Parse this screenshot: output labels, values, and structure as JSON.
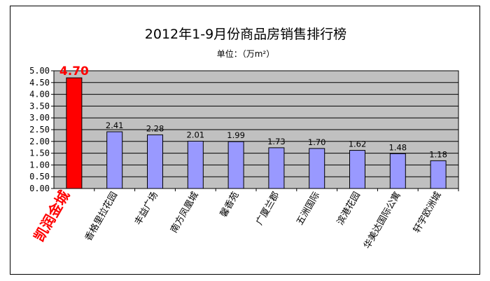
{
  "chart_data": {
    "type": "bar",
    "title": "2012年1-9月份商品房销售排行榜",
    "subtitle": "单位：（万m²）",
    "categories": [
      "凯润金城",
      "香格里拉花园",
      "丰益广场",
      "南方凤凰城",
      "馨香苑",
      "广厦兰郡",
      "五洲国际",
      "滨港花园",
      "华美达国际公寓",
      "轩宇欧洲城"
    ],
    "values": [
      4.7,
      2.41,
      2.28,
      2.01,
      1.99,
      1.73,
      1.7,
      1.62,
      1.48,
      1.18
    ],
    "value_labels": [
      "4.70",
      "2.41",
      "2.28",
      "2.01",
      "1.99",
      "1.73",
      "1.70",
      "1.62",
      "1.48",
      "1.18"
    ],
    "ylim": [
      0,
      5
    ],
    "yticks": [
      "5.00",
      "4.50",
      "4.00",
      "3.50",
      "3.00",
      "2.50",
      "2.00",
      "1.50",
      "1.00",
      "0.50",
      "0.00"
    ],
    "xlabel": "",
    "ylabel": "",
    "grid": true,
    "legend": "none",
    "highlight_index": 0,
    "colors": {
      "bar": "#9999ff",
      "highlight_bar": "#ff0000",
      "plot_background": "#c0c0c0",
      "highlight_text": "#ff0000"
    }
  }
}
